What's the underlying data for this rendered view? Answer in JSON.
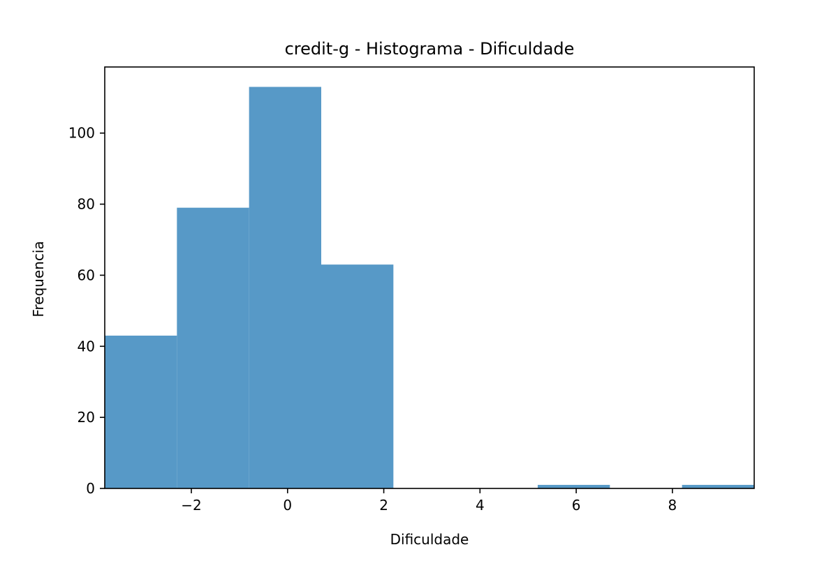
{
  "chart_data": {
    "type": "bar",
    "title": "credit-g - Histograma - Dificuldade",
    "xlabel": "Dificuldade",
    "ylabel": "Frequencia",
    "xlim": [
      -3.8,
      9.7
    ],
    "ylim": [
      0,
      118.6
    ],
    "x_ticks": [
      {
        "value": -2,
        "label": "−2"
      },
      {
        "value": 0,
        "label": "0"
      },
      {
        "value": 2,
        "label": "2"
      },
      {
        "value": 4,
        "label": "4"
      },
      {
        "value": 6,
        "label": "6"
      },
      {
        "value": 8,
        "label": "8"
      }
    ],
    "y_ticks": [
      {
        "value": 0,
        "label": "0"
      },
      {
        "value": 20,
        "label": "20"
      },
      {
        "value": 40,
        "label": "40"
      },
      {
        "value": 60,
        "label": "60"
      },
      {
        "value": 80,
        "label": "80"
      },
      {
        "value": 100,
        "label": "100"
      }
    ],
    "bins": [
      {
        "x0": -3.8,
        "x1": -2.3,
        "count": 43
      },
      {
        "x0": -2.3,
        "x1": -0.8,
        "count": 79
      },
      {
        "x0": -0.8,
        "x1": 0.7,
        "count": 113
      },
      {
        "x0": 0.7,
        "x1": 2.2,
        "count": 63
      },
      {
        "x0": 2.2,
        "x1": 3.7,
        "count": 0
      },
      {
        "x0": 3.7,
        "x1": 5.2,
        "count": 0
      },
      {
        "x0": 5.2,
        "x1": 6.7,
        "count": 1
      },
      {
        "x0": 6.7,
        "x1": 8.2,
        "count": 0
      },
      {
        "x0": 8.2,
        "x1": 9.7,
        "count": 1
      }
    ],
    "bar_color": "#5799c7",
    "grid": false
  }
}
